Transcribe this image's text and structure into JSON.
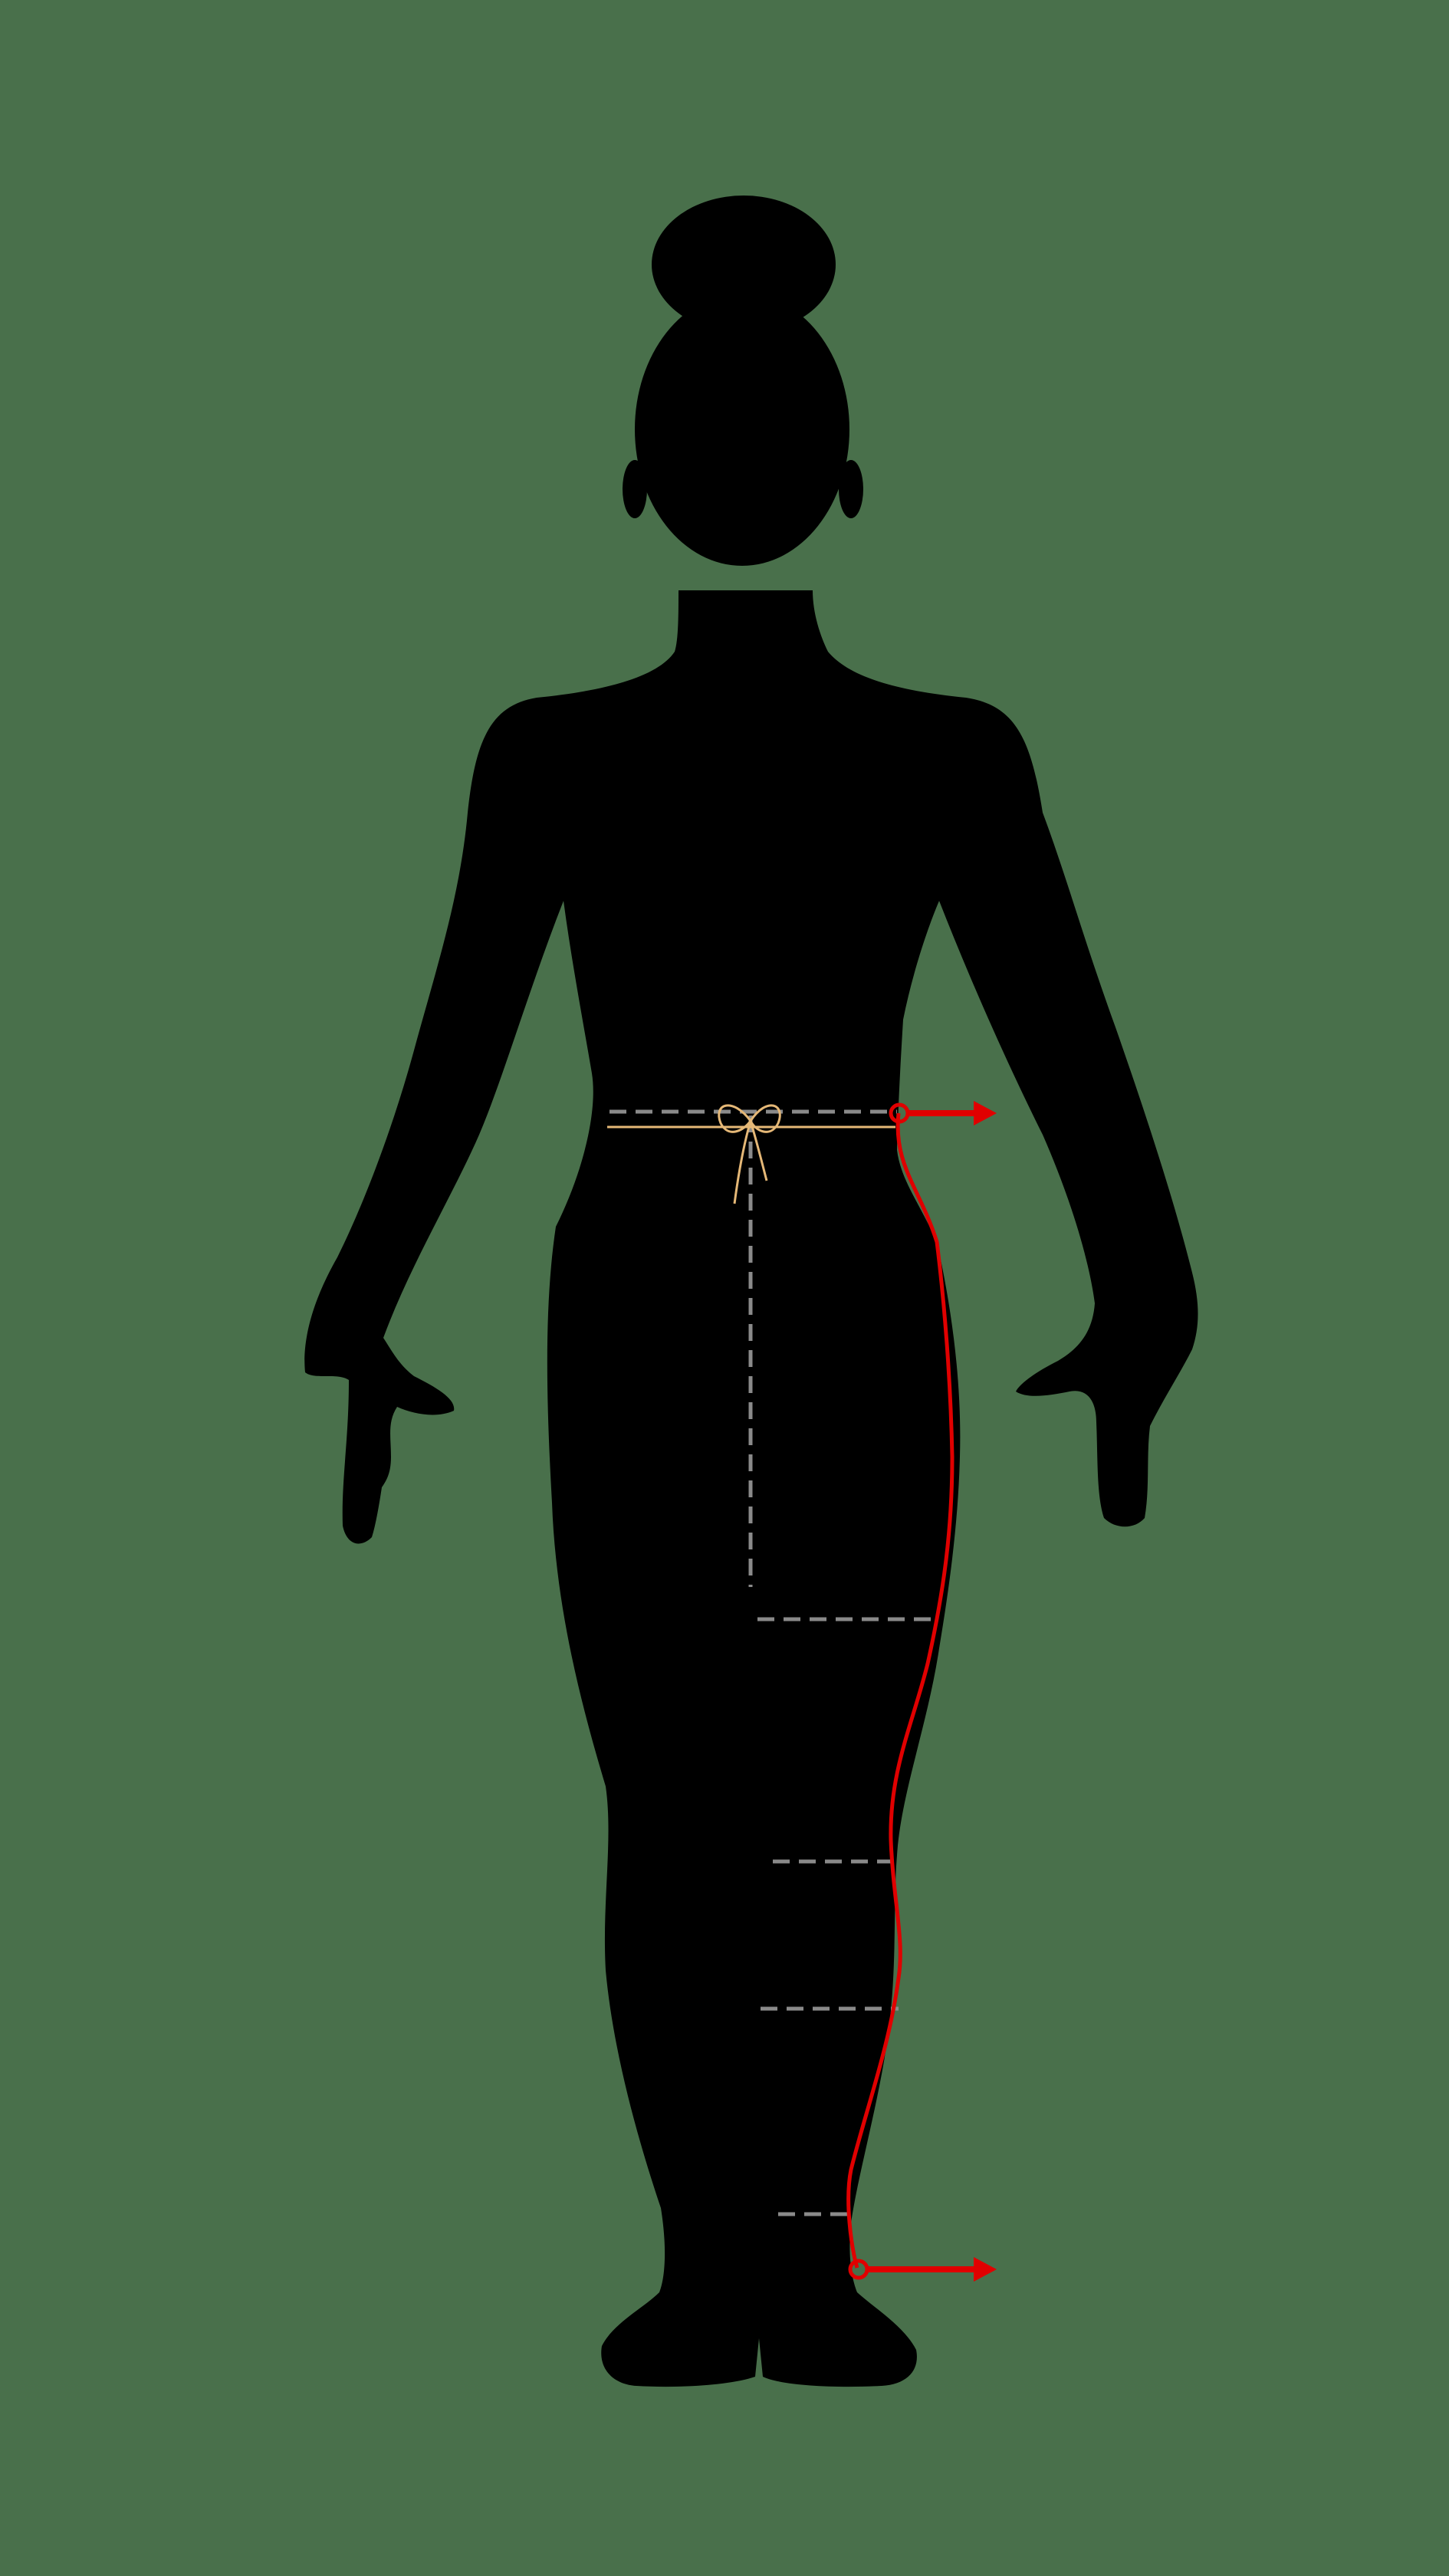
{
  "colors": {
    "background": "#49704b",
    "silhouette": "#000000",
    "guide_lines": "#8a8a8a",
    "outseam_line": "#e00000",
    "waist_tie": "#e5b877"
  },
  "figure": {
    "subject": "female-body-silhouette",
    "pose": "front-standing"
  },
  "measurements": [
    {
      "id": "waist",
      "style": "dashed"
    },
    {
      "id": "inseam",
      "style": "dashed"
    },
    {
      "id": "thigh",
      "style": "dashed"
    },
    {
      "id": "knee",
      "style": "dashed"
    },
    {
      "id": "calf",
      "style": "dashed"
    },
    {
      "id": "ankle",
      "style": "dashed"
    },
    {
      "id": "outseam",
      "style": "solid",
      "endpoints": [
        "waist-arrow",
        "ankle-arrow"
      ]
    }
  ],
  "icons": [
    "waist-tie-bow-icon",
    "arrow-right-icon"
  ]
}
